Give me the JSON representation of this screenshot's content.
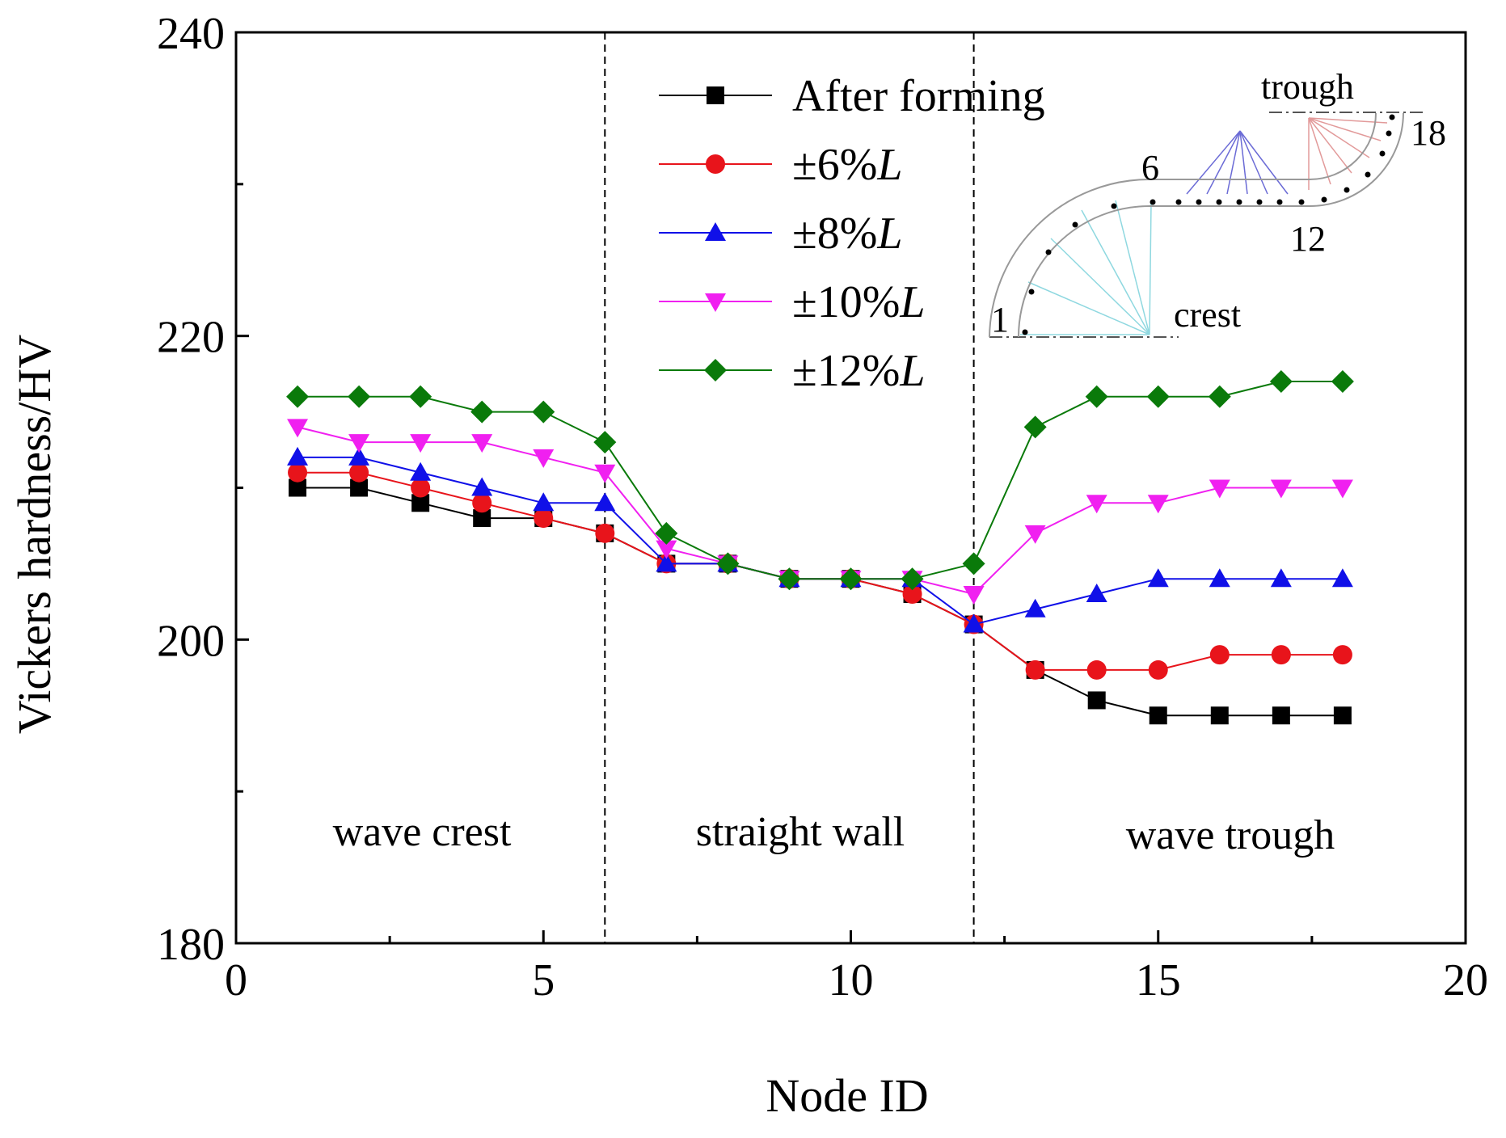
{
  "chart_data": {
    "type": "line",
    "title": "",
    "xlabel": "Node ID",
    "ylabel": "Vickers hardness/HV",
    "xlim": [
      0,
      20
    ],
    "ylim": [
      180,
      240
    ],
    "x_ticks": [
      "0",
      "5",
      "10",
      "15",
      "20"
    ],
    "y_ticks": [
      "180",
      "200",
      "220",
      "240"
    ],
    "x_tick_values": [
      0,
      5,
      10,
      15,
      20
    ],
    "y_tick_values": [
      180,
      200,
      220,
      240
    ],
    "x": [
      1,
      2,
      3,
      4,
      5,
      6,
      7,
      8,
      9,
      10,
      11,
      12,
      13,
      14,
      15,
      16,
      17,
      18
    ],
    "series": [
      {
        "name": "After forming",
        "marker": "square",
        "color": "#000000",
        "values": [
          210,
          210,
          209,
          208,
          208,
          207,
          205,
          205,
          204,
          204,
          203,
          201,
          198,
          196,
          195,
          195,
          195,
          195
        ]
      },
      {
        "name": "±6%L",
        "marker": "circle",
        "color": "#e8141b",
        "values": [
          211,
          211,
          210,
          209,
          208,
          207,
          205,
          205,
          204,
          204,
          203,
          201,
          198,
          198,
          198,
          199,
          199,
          199
        ]
      },
      {
        "name": "±8%L",
        "marker": "triangle-up",
        "color": "#1010e8",
        "values": [
          212,
          212,
          211,
          210,
          209,
          209,
          205,
          205,
          204,
          204,
          204,
          201,
          202,
          203,
          204,
          204,
          204,
          204
        ]
      },
      {
        "name": "±10%L",
        "marker": "triangle-down",
        "color": "#f020f0",
        "values": [
          214,
          213,
          213,
          213,
          212,
          211,
          206,
          205,
          204,
          204,
          204,
          203,
          207,
          209,
          209,
          210,
          210,
          210
        ]
      },
      {
        "name": "±12%L",
        "marker": "diamond",
        "color": "#0a7a0a",
        "values": [
          216,
          216,
          216,
          215,
          215,
          213,
          207,
          205,
          204,
          204,
          204,
          205,
          214,
          216,
          216,
          216,
          217,
          217
        ]
      }
    ],
    "vertical_lines": [
      6,
      12
    ],
    "region_labels": [
      "wave crest",
      "straight wall",
      "wave trough"
    ],
    "legend_position": "top-center",
    "inset": {
      "labels": [
        "trough",
        "18",
        "6",
        "12",
        "1",
        "crest"
      ]
    }
  }
}
